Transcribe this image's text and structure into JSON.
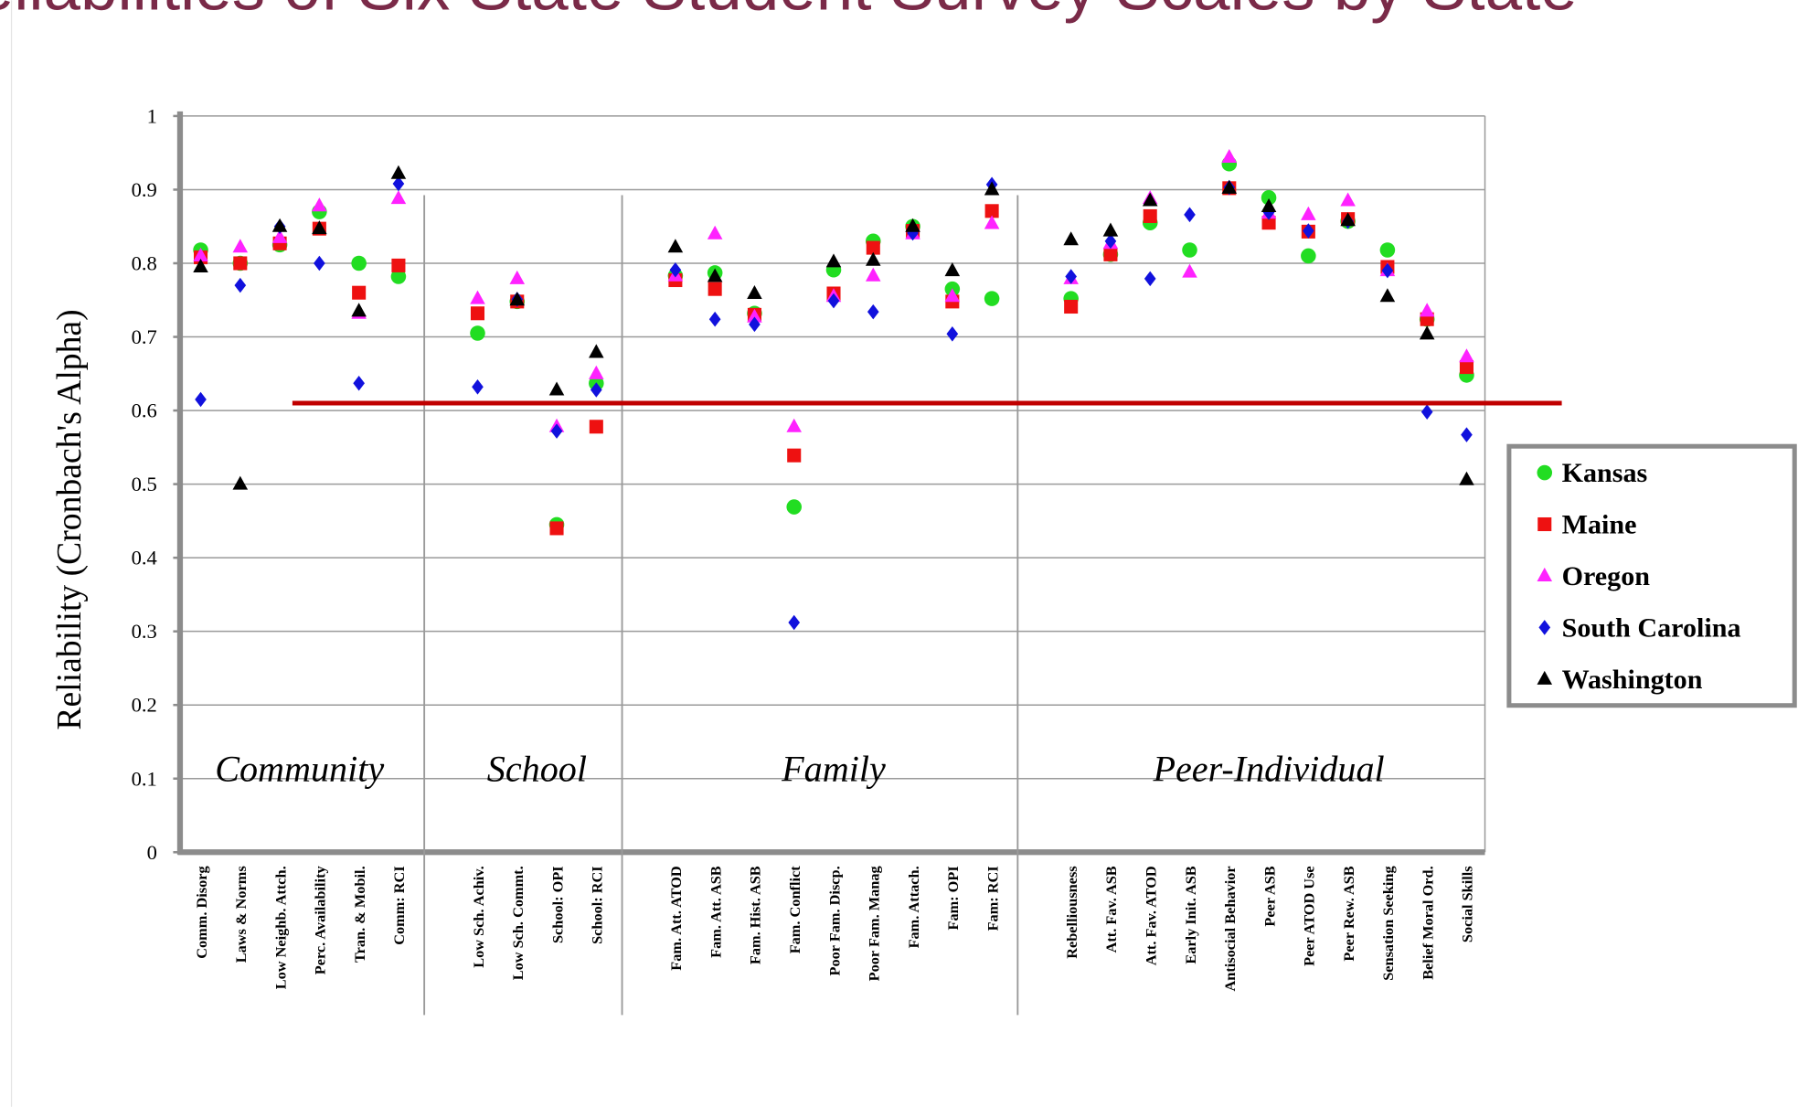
{
  "chart_data": {
    "type": "dot",
    "title": "Reliabilities of Six State Student Survey Scales by State",
    "y_label": "Reliability  (Cronbach's Alpha)",
    "categories": [
      "Comm. Disorg",
      "Laws & Norms",
      "Low Neighb. Attch.",
      "Perc. Availability",
      "Tran. & Mobil.",
      "Comm: RCI",
      null,
      "Low Sch. Achiv.",
      "Low Sch. Commt.",
      "School: OPI",
      "School: RCI",
      null,
      "Fam. Att. ATOD",
      "Fam. Att. ASB",
      "Fam. Hist. ASB",
      "Fam. Conflict",
      "Poor Fam. Discp.",
      "Poor Fam. Manag",
      "Fam. Attach.",
      "Fam: OPI",
      "Fam: RCI",
      null,
      "Rebelliousness",
      "Att. Fav. ASB",
      "Att. Fav. ATOD",
      "Early Init. ASB",
      "Antisocial Behavior",
      "Peer ASB",
      "Peer ATOD Use",
      "Peer Rew. ASB",
      "Sensation Seeking",
      "Belief Moral Ord.",
      "Social Skills"
    ],
    "groups": [
      "Community",
      "School",
      "Family",
      "Peer-Individual"
    ],
    "series": [
      {
        "name": "Kansas",
        "color": "#22dd22",
        "marker": "circle",
        "values": [
          0.818,
          0.8,
          0.825,
          0.87,
          0.8,
          0.782,
          null,
          0.705,
          0.748,
          0.445,
          0.637,
          null,
          0.783,
          0.787,
          0.732,
          0.469,
          0.791,
          0.83,
          0.85,
          0.765,
          0.752,
          null,
          0.752,
          0.812,
          0.855,
          0.818,
          0.935,
          0.889,
          0.81,
          0.857,
          0.818,
          0.724,
          0.648
        ]
      },
      {
        "name": "Maine",
        "color": "#ee1111",
        "marker": "square",
        "values": [
          0.808,
          0.8,
          0.827,
          0.847,
          0.76,
          0.797,
          null,
          0.732,
          0.748,
          0.44,
          0.578,
          null,
          0.777,
          0.765,
          0.73,
          0.539,
          0.759,
          0.821,
          0.844,
          0.748,
          0.871,
          null,
          0.741,
          0.812,
          0.864,
          null,
          0.902,
          0.855,
          0.843,
          0.86,
          0.795,
          0.724,
          0.659
        ]
      },
      {
        "name": "Oregon",
        "color": "#ff22ff",
        "marker": "triangle",
        "values": [
          0.81,
          0.822,
          0.835,
          0.878,
          0.732,
          0.888,
          null,
          0.752,
          0.779,
          0.578,
          0.65,
          null,
          0.783,
          0.84,
          0.727,
          0.578,
          0.755,
          0.783,
          0.84,
          0.755,
          0.854,
          null,
          0.779,
          0.827,
          0.888,
          0.788,
          0.944,
          0.868,
          0.866,
          0.885,
          0.79,
          0.735,
          0.673
        ]
      },
      {
        "name": "South Carolina",
        "color": "#1111dd",
        "marker": "diamond",
        "values": [
          0.615,
          0.77,
          0.85,
          0.8,
          0.637,
          0.908,
          null,
          0.632,
          0.751,
          0.572,
          0.628,
          null,
          0.791,
          0.724,
          0.717,
          0.312,
          0.749,
          0.734,
          0.841,
          0.704,
          0.907,
          null,
          0.782,
          0.83,
          0.779,
          0.866,
          0.903,
          0.869,
          0.844,
          0.857,
          0.79,
          0.598,
          0.567
        ]
      },
      {
        "name": "Washington",
        "color": "#000000",
        "marker": "triangle",
        "values": [
          0.795,
          0.5,
          0.85,
          0.847,
          0.735,
          0.922,
          null,
          null,
          0.75,
          0.628,
          0.679,
          null,
          0.822,
          0.782,
          0.759,
          null,
          0.802,
          0.804,
          0.85,
          0.79,
          0.9,
          null,
          0.832,
          0.844,
          0.885,
          null,
          0.902,
          0.877,
          null,
          0.858,
          0.755,
          0.704,
          0.506
        ]
      }
    ],
    "reference_line": 0.61,
    "reference_color": "#c00000",
    "ylim": [
      0,
      1
    ],
    "yticks": [
      0,
      0.1,
      0.2,
      0.3,
      0.4,
      0.5,
      0.6,
      0.7,
      0.8,
      0.9,
      1
    ],
    "grid": true,
    "legend": "right"
  }
}
